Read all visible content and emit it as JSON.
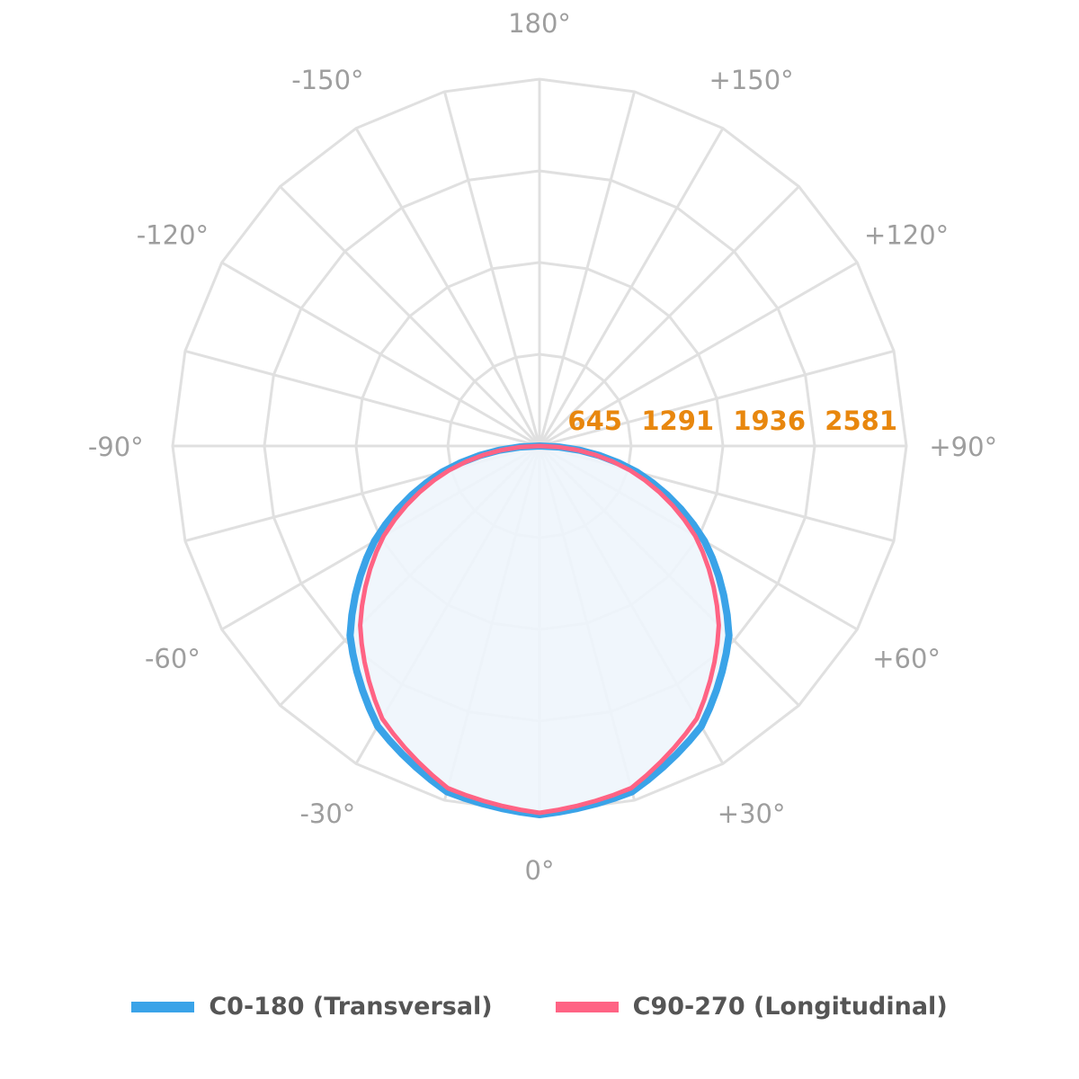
{
  "chart_data": {
    "type": "polar",
    "angle_labels": [
      "0°",
      "+30°",
      "+60°",
      "+90°",
      "+120°",
      "+150°",
      "180°",
      "-150°",
      "-120°",
      "-90°",
      "-60°",
      "-30°"
    ],
    "angle_label_degrees": [
      0,
      30,
      60,
      90,
      120,
      150,
      180,
      -150,
      -120,
      -90,
      -60,
      -30
    ],
    "radial_ticks": [
      645,
      1291,
      1936,
      2581
    ],
    "radial_tick_labels": [
      "645",
      "1291",
      "1936",
      "2581"
    ],
    "rlim": [
      0,
      2581
    ],
    "grid": true,
    "legend_position": "bottom",
    "angles": [
      -90,
      -75,
      -60,
      -45,
      -30,
      -15,
      0,
      15,
      30,
      45,
      60,
      75,
      90
    ],
    "series": [
      {
        "name": "C0-180 (Transversal)",
        "color": "#3aa3e8",
        "values": [
          0,
          708,
          1341,
          1885,
          2277,
          2518,
          2594,
          2518,
          2277,
          1885,
          1341,
          708,
          0
        ]
      },
      {
        "name": "C90-270 (Longitudinal)",
        "color": "#ff6384",
        "values": [
          0,
          658,
          1265,
          1784,
          2214,
          2492,
          2581,
          2492,
          2214,
          1784,
          1265,
          658,
          0
        ]
      }
    ],
    "colors": {
      "grid": "#e0e0e0",
      "angle_label": "#9e9e9e",
      "radial_label": "#e8870e",
      "fill": "#eef5fc"
    }
  }
}
